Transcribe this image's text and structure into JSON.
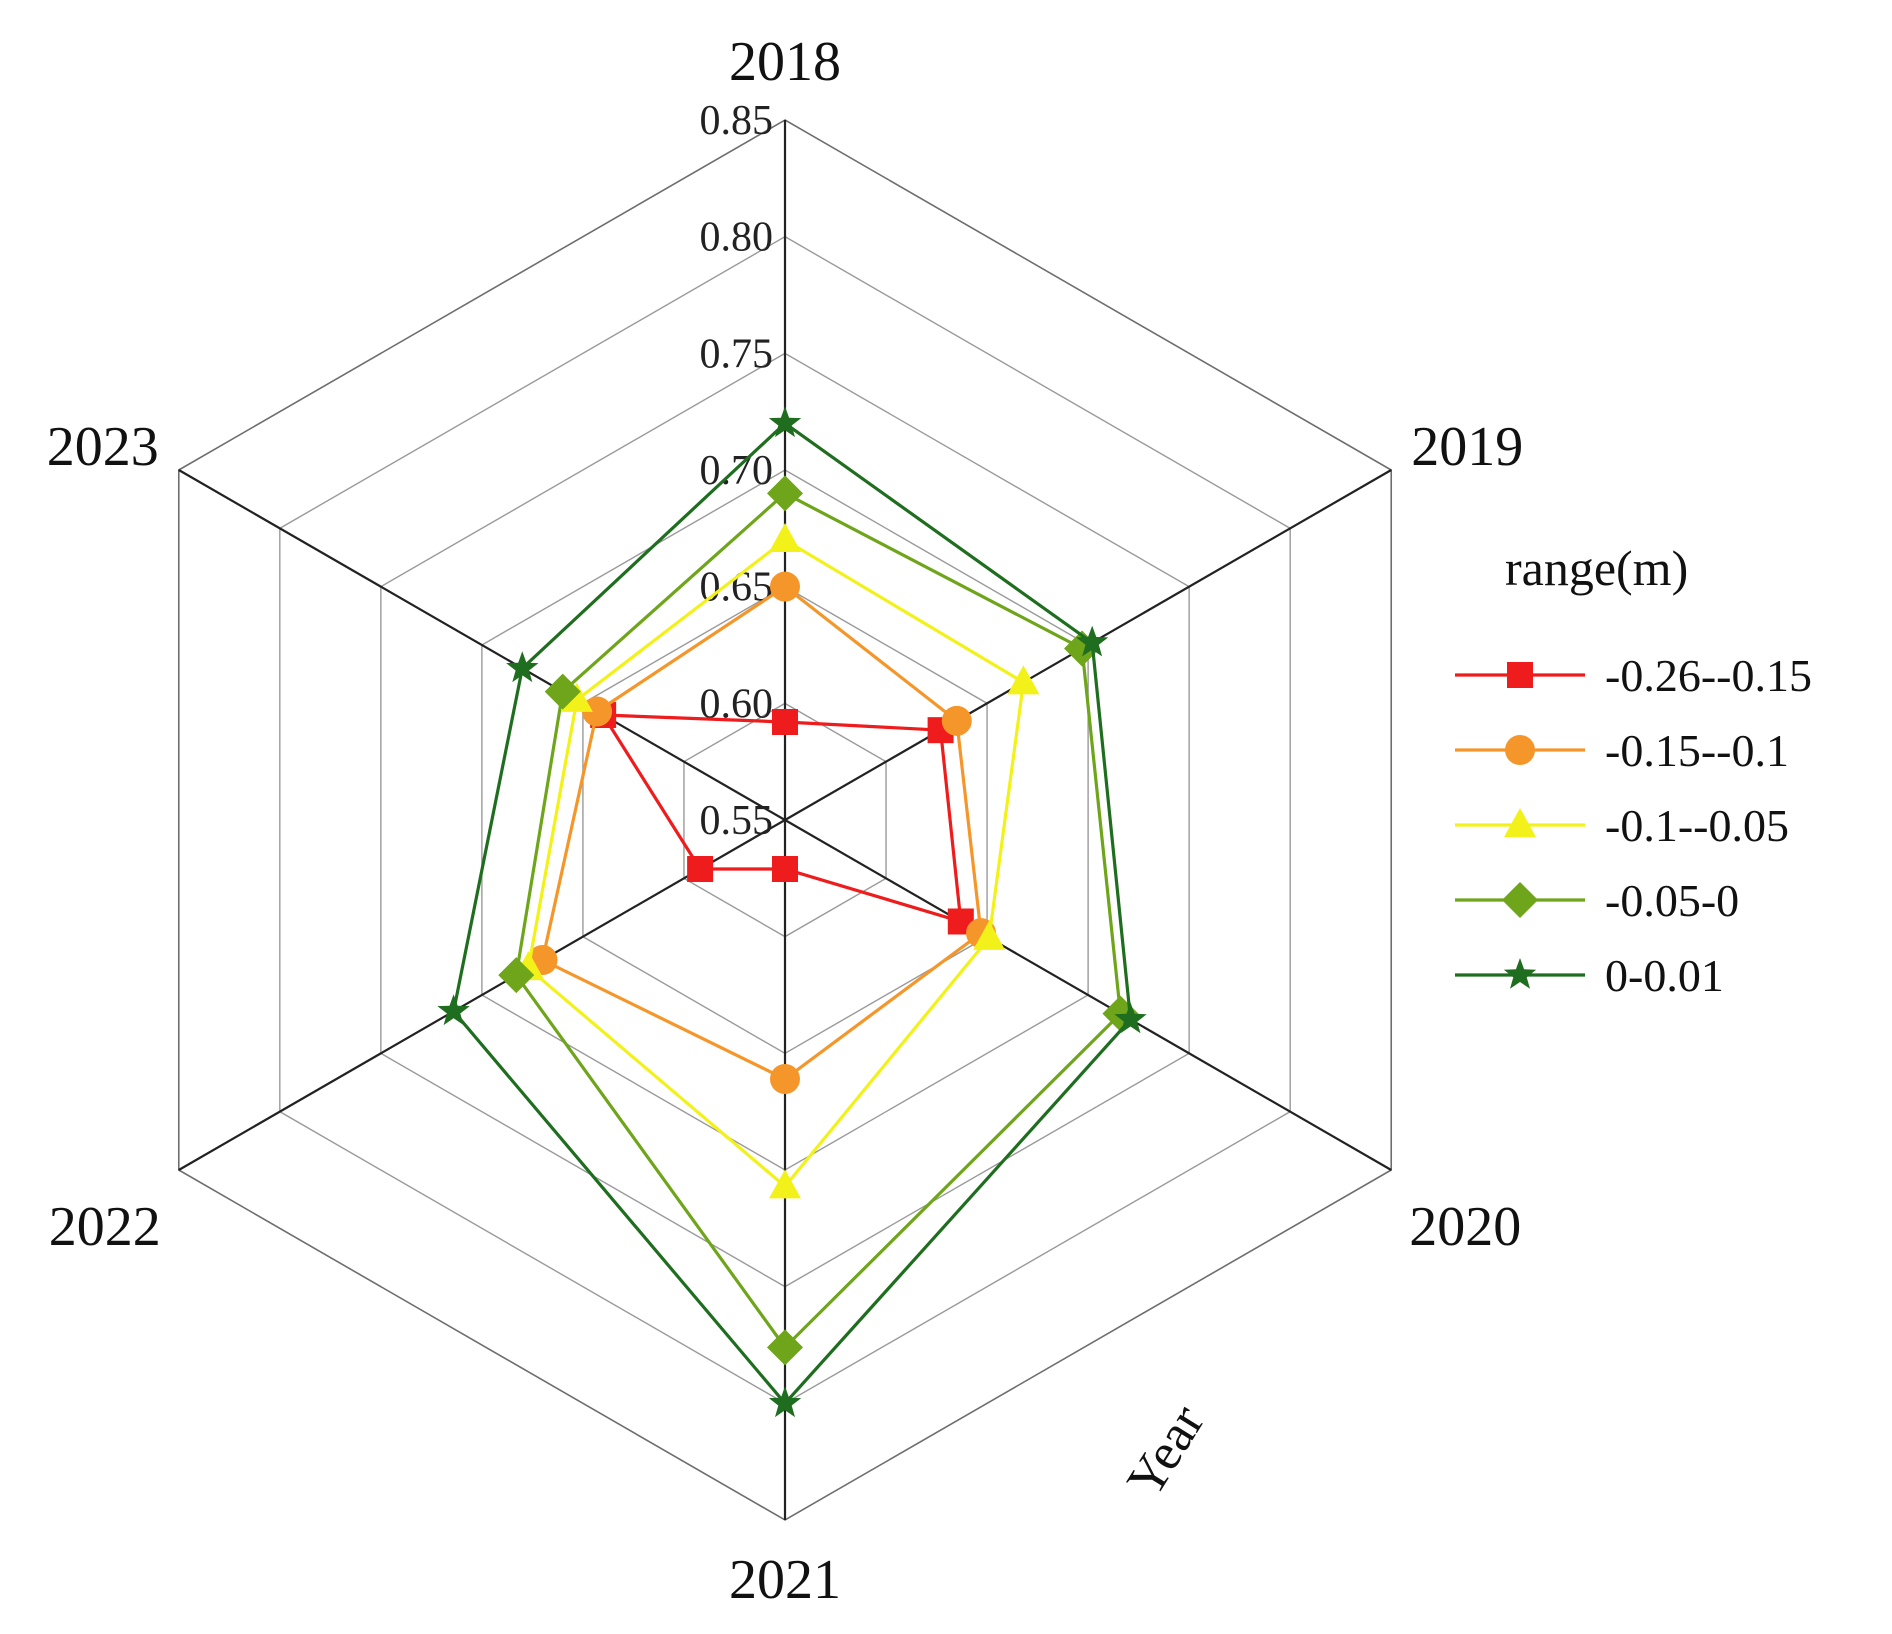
{
  "chart_data": {
    "type": "radar",
    "title": "",
    "axis_title": "Year",
    "categories": [
      "2018",
      "2019",
      "2020",
      "2021",
      "2022",
      "2023"
    ],
    "r_range": [
      0.55,
      0.85
    ],
    "r_ticks": [
      "0.55",
      "0.60",
      "0.65",
      "0.70",
      "0.75",
      "0.80",
      "0.85"
    ],
    "r_tick_values": [
      0.55,
      0.6,
      0.65,
      0.7,
      0.75,
      0.8,
      0.85
    ],
    "legend_title": "range(m)",
    "legend_position": "right",
    "series": [
      {
        "name": "-0.26--0.15",
        "color": "#ee1c1c",
        "marker": "square",
        "values": [
          0.592,
          0.627,
          0.637,
          0.571,
          0.592,
          0.64
        ]
      },
      {
        "name": "-0.15--0.1",
        "color": "#f5962a",
        "marker": "circle",
        "values": [
          0.65,
          0.635,
          0.647,
          0.661,
          0.67,
          0.643
        ]
      },
      {
        "name": "-0.1--0.05",
        "color": "#f2f21a",
        "marker": "triangle",
        "values": [
          0.67,
          0.668,
          0.651,
          0.707,
          0.677,
          0.653
        ]
      },
      {
        "name": "-0.05-0",
        "color": "#6fa51b",
        "marker": "diamond",
        "values": [
          0.69,
          0.697,
          0.716,
          0.776,
          0.683,
          0.66
        ]
      },
      {
        "name": "0-0.01",
        "color": "#1f6e1f",
        "marker": "star",
        "values": [
          0.72,
          0.702,
          0.721,
          0.8,
          0.714,
          0.68
        ]
      }
    ]
  }
}
